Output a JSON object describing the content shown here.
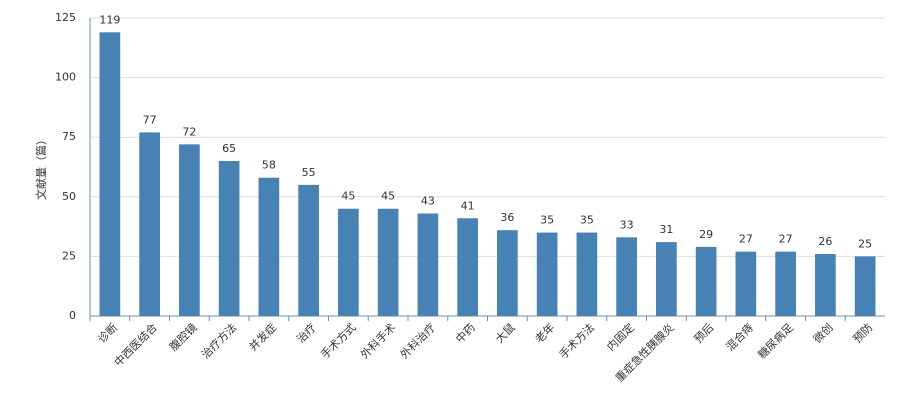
{
  "chart_data": {
    "type": "bar",
    "y_label": "文献量（篇）",
    "categories": [
      "诊断",
      "中西医结合",
      "腹腔镜",
      "治疗方法",
      "并发症",
      "治疗",
      "手术方式",
      "外科手术",
      "外科治疗",
      "中药",
      "大鼠",
      "老年",
      "手术方法",
      "内固定",
      "重症急性胰腺炎",
      "预后",
      "混合痔",
      "糖尿病足",
      "微创",
      "预防"
    ],
    "values": [
      119,
      77,
      72,
      65,
      58,
      55,
      45,
      45,
      43,
      41,
      36,
      35,
      35,
      33,
      31,
      29,
      27,
      27,
      26,
      25
    ],
    "color": "#4682b4",
    "ylim": [
      0,
      125
    ],
    "yticks": [
      0,
      25,
      50,
      75,
      100,
      125
    ],
    "grid": true
  }
}
